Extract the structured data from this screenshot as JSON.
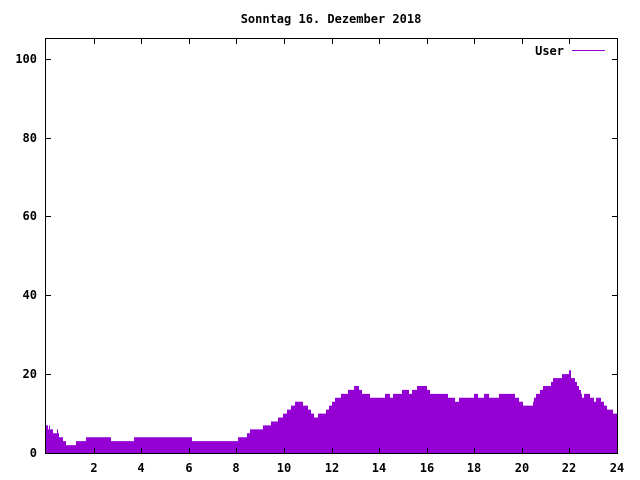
{
  "chart_data": {
    "type": "bar",
    "title": "Sonntag 16. Dezember 2018",
    "xlabel": "",
    "ylabel": "",
    "xlim": [
      0,
      24
    ],
    "ylim": [
      0,
      105
    ],
    "x_ticks": [
      2,
      4,
      6,
      8,
      10,
      12,
      14,
      16,
      18,
      20,
      22,
      24
    ],
    "y_ticks": [
      0,
      20,
      40,
      60,
      80,
      100
    ],
    "grid": false,
    "legend_position": "top-right",
    "bar_color": "#9400d3",
    "series": [
      {
        "name": "User",
        "color": "#9400d3",
        "values": [
          7,
          7,
          6,
          7,
          6,
          6,
          6,
          5,
          5,
          5,
          5,
          6,
          5,
          5,
          4,
          4,
          4,
          4,
          3,
          3,
          3,
          2,
          2,
          2,
          2,
          2,
          2,
          2,
          2,
          2,
          2,
          3,
          3,
          3,
          3,
          3,
          3,
          3,
          3,
          3,
          3,
          3,
          4,
          4,
          4,
          4,
          4,
          4,
          4,
          4,
          4,
          4,
          4,
          4,
          4,
          4,
          4,
          4,
          4,
          4,
          4,
          4,
          4,
          4,
          4,
          4,
          4,
          4,
          3,
          3,
          3,
          3,
          3,
          3,
          3,
          3,
          3,
          3,
          3,
          3,
          3,
          3,
          3,
          3,
          3,
          3,
          3,
          3,
          3,
          3,
          3,
          3,
          4,
          4,
          4,
          4,
          4,
          4,
          4,
          4,
          4,
          4,
          4,
          4,
          4,
          4,
          4,
          4,
          4,
          4,
          4,
          4,
          4,
          4,
          4,
          4,
          4,
          4,
          4,
          4,
          4,
          4,
          4,
          4,
          4,
          4,
          4,
          4,
          4,
          4,
          4,
          4,
          4,
          4,
          4,
          4,
          4,
          4,
          4,
          4,
          4,
          4,
          4,
          4,
          4,
          4,
          4,
          4,
          4,
          4,
          4,
          4,
          3,
          3,
          3,
          3,
          3,
          3,
          3,
          3,
          3,
          3,
          3,
          3,
          3,
          3,
          3,
          3,
          3,
          3,
          3,
          3,
          3,
          3,
          3,
          3,
          3,
          3,
          3,
          3,
          3,
          3,
          3,
          3,
          3,
          3,
          3,
          3,
          3,
          3,
          3,
          3,
          3,
          3,
          3,
          3,
          3,
          3,
          3,
          3,
          4,
          4,
          4,
          4,
          4,
          4,
          4,
          4,
          4,
          5,
          5,
          5,
          5,
          6,
          6,
          6,
          6,
          6,
          6,
          6,
          6,
          6,
          6,
          6,
          6,
          6,
          7,
          7,
          7,
          7,
          7,
          7,
          7,
          7,
          8,
          8,
          8,
          8,
          8,
          8,
          8,
          8,
          9,
          9,
          9,
          9,
          9,
          10,
          10,
          10,
          10,
          11,
          11,
          11,
          11,
          12,
          12,
          12,
          12,
          13,
          13,
          13,
          13,
          13,
          13,
          13,
          13,
          13,
          12,
          12,
          12,
          12,
          12,
          11,
          11,
          11,
          10,
          10,
          10,
          9,
          9,
          9,
          9,
          10,
          10,
          10,
          10,
          10,
          10,
          10,
          10,
          10,
          11,
          11,
          11,
          12,
          12,
          12,
          13,
          13,
          13,
          14,
          14,
          14,
          14,
          14,
          14,
          15,
          15,
          15,
          15,
          15,
          15,
          15,
          15,
          16,
          16,
          16,
          16,
          16,
          16,
          17,
          17,
          17,
          17,
          17,
          16,
          16,
          16,
          15,
          15,
          15,
          15,
          15,
          15,
          15,
          15,
          15,
          14,
          14,
          14,
          14,
          14,
          14,
          14,
          14,
          14,
          14,
          14,
          14,
          14,
          14,
          14,
          15,
          15,
          15,
          15,
          15,
          14,
          14,
          14,
          14,
          15,
          15,
          15,
          15,
          15,
          15,
          15,
          15,
          15,
          16,
          16,
          16,
          16,
          16,
          16,
          16,
          15,
          15,
          15,
          16,
          16,
          16,
          16,
          16,
          16,
          17,
          17,
          17,
          17,
          17,
          17,
          17,
          17,
          17,
          17,
          16,
          16,
          16,
          15,
          15,
          15,
          15,
          15,
          15,
          15,
          15,
          15,
          15,
          15,
          15,
          15,
          15,
          15,
          15,
          15,
          15,
          15,
          14,
          14,
          14,
          14,
          14,
          14,
          14,
          13,
          13,
          13,
          13,
          14,
          14,
          14,
          14,
          14,
          14,
          14,
          14,
          14,
          14,
          14,
          14,
          14,
          14,
          14,
          14,
          15,
          15,
          15,
          15,
          14,
          14,
          14,
          14,
          14,
          14,
          15,
          15,
          15,
          15,
          15,
          15,
          14,
          14,
          14,
          14,
          14,
          14,
          14,
          14,
          14,
          14,
          15,
          15,
          15,
          15,
          15,
          15,
          15,
          15,
          15,
          15,
          15,
          15,
          15,
          15,
          15,
          15,
          15,
          14,
          14,
          14,
          14,
          13,
          13,
          13,
          13,
          12,
          12,
          12,
          12,
          12,
          12,
          12,
          12,
          12,
          12,
          13,
          13,
          14,
          14,
          15,
          15,
          15,
          15,
          16,
          16,
          16,
          17,
          17,
          17,
          17,
          17,
          17,
          17,
          17,
          18,
          18,
          19,
          19,
          19,
          19,
          19,
          19,
          19,
          19,
          19,
          19,
          20,
          20,
          20,
          20,
          20,
          20,
          20,
          21,
          21,
          19,
          19,
          19,
          19,
          18,
          18,
          17,
          17,
          16,
          16,
          15,
          14,
          14,
          14,
          15,
          15,
          15,
          15,
          15,
          15,
          14,
          14,
          14,
          14,
          13,
          13,
          14,
          14,
          14,
          14,
          14,
          13,
          13,
          13,
          12,
          12,
          12,
          12,
          11,
          11,
          11,
          11,
          11,
          11,
          10,
          10,
          10,
          10
        ]
      }
    ]
  }
}
